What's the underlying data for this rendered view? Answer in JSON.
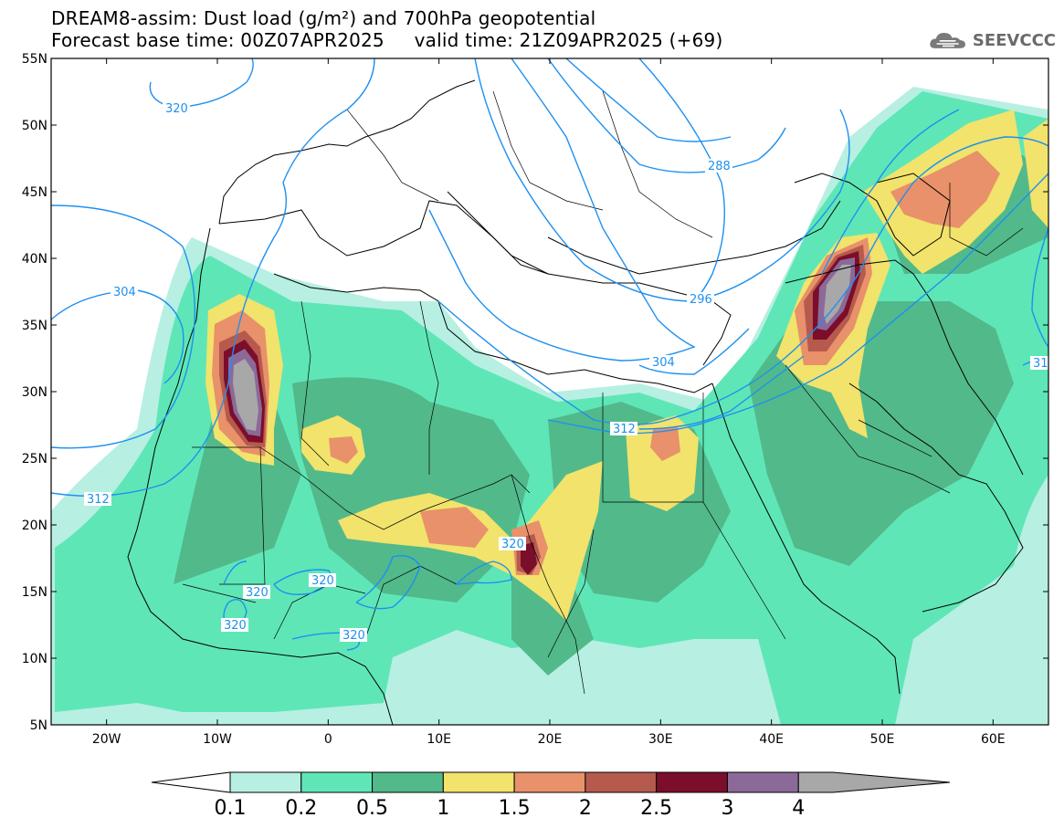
{
  "title": {
    "line1": "DREAM8-assim: Dust load (g/m²) and 700hPa geopotential",
    "line2": "Forecast base time: 00Z07APR2025     valid time: 21Z09APR2025 (+69)"
  },
  "logo": {
    "text": "SEEVCCC",
    "icon": "cloud-icon"
  },
  "map": {
    "lat_labels": [
      "55N",
      "50N",
      "45N",
      "40N",
      "35N",
      "30N",
      "25N",
      "20N",
      "15N",
      "10N",
      "5N"
    ],
    "lon_labels": [
      "20W",
      "10W",
      "0",
      "10E",
      "20E",
      "30E",
      "40E",
      "50E",
      "60E"
    ],
    "lon_range": [
      -25,
      65
    ],
    "lat_range": [
      5,
      55
    ],
    "contour_labels": [
      "320",
      "288",
      "296",
      "304",
      "304",
      "312",
      "312",
      "320",
      "320",
      "320",
      "320",
      "320",
      "31"
    ],
    "dust_colors": [
      "#b7efe3",
      "#5fe6b7",
      "#52b98b",
      "#f1e36b",
      "#e8916a",
      "#b65a4e",
      "#7a0e2b",
      "#8b6a9a",
      "#a8a8a8"
    ]
  },
  "colorbar": {
    "labels": [
      "0.1",
      "0.2",
      "0.5",
      "1",
      "1.5",
      "2",
      "2.5",
      "3",
      "4"
    ],
    "colors": [
      "#b7efe3",
      "#5fe6b7",
      "#52b98b",
      "#f1e36b",
      "#e8916a",
      "#b65a4e",
      "#7a0e2b",
      "#8b6a9a",
      "#a8a8a8"
    ]
  }
}
